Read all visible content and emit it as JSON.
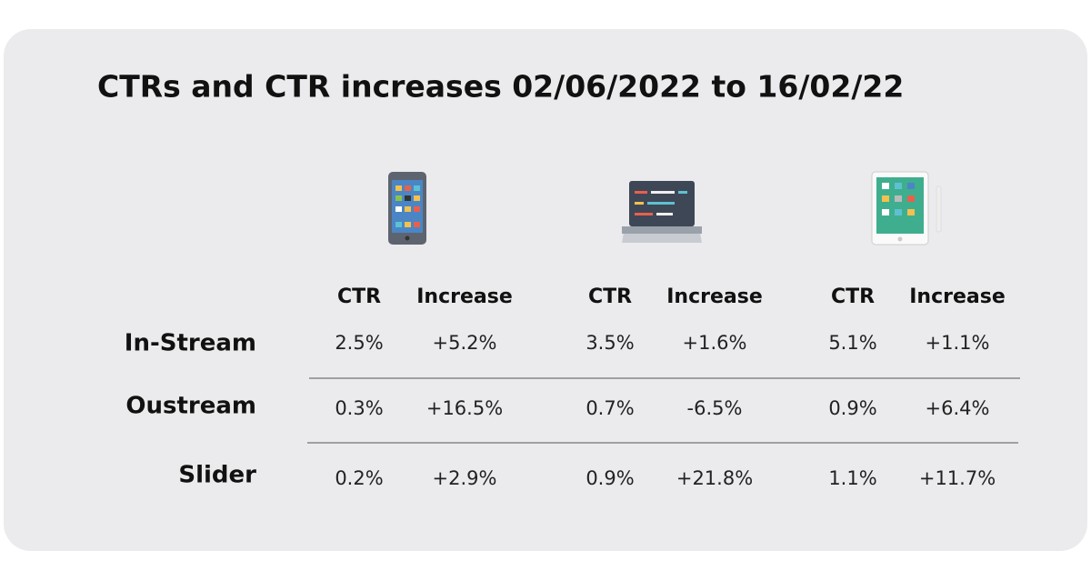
{
  "title": "CTRs and CTR increases 02/06/2022 to 16/02/22",
  "table": {
    "header": [
      "CTR",
      "Increase",
      "CTR",
      "Increase",
      "CTR",
      "Increase"
    ],
    "rows": [
      {
        "label": "In-Stream",
        "cells": [
          "2.5%",
          "+5.2%",
          "3.5%",
          "+1.6%",
          "5.1%",
          "+1.1%"
        ]
      },
      {
        "label": "Oustream",
        "cells": [
          "0.3%",
          "+16.5%",
          "0.7%",
          "-6.5%",
          "0.9%",
          "+6.4%"
        ]
      },
      {
        "label": "Slider",
        "cells": [
          "0.2%",
          "+2.9%",
          "0.9%",
          "+21.8%",
          "1.1%",
          "+11.7%"
        ]
      }
    ]
  }
}
